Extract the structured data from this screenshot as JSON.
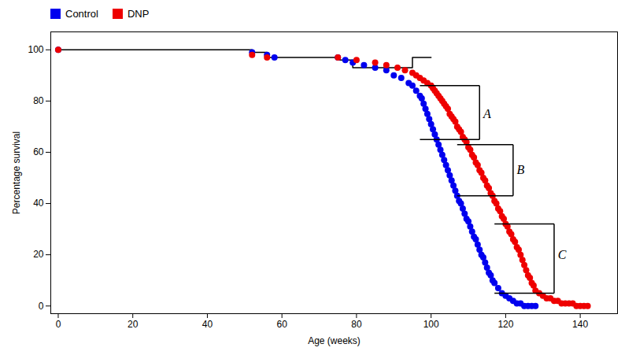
{
  "chart_data": {
    "type": "scatter",
    "xlabel": "Age (weeks)",
    "ylabel": "Percentage survival",
    "xlim": [
      -2,
      150
    ],
    "ylim": [
      -3,
      107
    ],
    "xticks": [
      0,
      20,
      40,
      60,
      80,
      100,
      120,
      140
    ],
    "yticks": [
      0,
      20,
      40,
      60,
      80,
      100
    ],
    "grid": false,
    "legend": "top",
    "series": [
      {
        "name": "Control",
        "color": "#0000EE",
        "x": [
          0,
          52,
          56,
          58,
          75,
          77,
          79,
          82,
          85,
          88,
          90,
          92,
          94,
          95,
          96,
          97,
          97.5,
          98,
          98.5,
          99,
          99.5,
          100,
          100.5,
          101,
          101.5,
          102,
          102.5,
          103,
          103.5,
          104,
          104.5,
          105,
          105.5,
          106,
          106.5,
          107,
          107.5,
          108,
          108.5,
          109,
          109.5,
          110,
          110.5,
          111,
          111.5,
          112,
          112.5,
          113,
          113.5,
          114,
          114.5,
          115,
          115.5,
          116,
          116.5,
          117,
          118,
          119,
          120,
          121,
          122,
          123,
          124,
          125,
          126,
          127,
          128
        ],
        "values": [
          100,
          99,
          98,
          97,
          97,
          96,
          95,
          94,
          93,
          92,
          90,
          89,
          87,
          86,
          84,
          82,
          81,
          79,
          77,
          75,
          73,
          71,
          69,
          67,
          65,
          63,
          61,
          59,
          57,
          55,
          53,
          51,
          49,
          47,
          45,
          43,
          41,
          40,
          38,
          36,
          34,
          33,
          31,
          29,
          27,
          26,
          24,
          22,
          20,
          19,
          17,
          15,
          13,
          12,
          10,
          9,
          7,
          5,
          4,
          3,
          2,
          1,
          1,
          0,
          0,
          0,
          0
        ]
      },
      {
        "name": "DNP",
        "color": "#EE0000",
        "x": [
          0,
          52,
          56,
          75,
          80,
          85,
          88,
          91,
          93,
          95,
          96,
          97,
          98,
          99,
          100,
          100.5,
          101,
          101.5,
          102,
          102.5,
          103,
          103.5,
          104,
          104.5,
          105,
          105.5,
          106,
          106.5,
          107,
          107.5,
          108,
          108.5,
          109,
          109.5,
          110,
          110.5,
          111,
          111.5,
          112,
          112.5,
          113,
          113.5,
          114,
          114.5,
          115,
          115.5,
          116,
          116.5,
          117,
          117.5,
          118,
          118.5,
          119,
          119.5,
          120,
          120.5,
          121,
          121.5,
          122,
          122.5,
          123,
          123.5,
          124,
          124.5,
          125,
          125.5,
          126,
          126.5,
          127,
          127.5,
          128,
          129,
          130,
          131,
          132,
          133,
          134,
          135,
          136,
          137,
          138,
          139,
          140,
          141,
          142
        ],
        "values": [
          100,
          98,
          97,
          97,
          96,
          95,
          94,
          93,
          92,
          91,
          90,
          89,
          88,
          87,
          86,
          85,
          84,
          83,
          82,
          81,
          80,
          79,
          78,
          77,
          75,
          74,
          73,
          72,
          70,
          69,
          68,
          66,
          65,
          64,
          62,
          61,
          59,
          58,
          56,
          55,
          53,
          52,
          50,
          49,
          47,
          46,
          44,
          43,
          41,
          40,
          38,
          37,
          35,
          34,
          32,
          31,
          29,
          28,
          26,
          25,
          23,
          22,
          20,
          18,
          16,
          14,
          12,
          11,
          9,
          8,
          6,
          5,
          4,
          3,
          3,
          2,
          2,
          1,
          1,
          1,
          1,
          0,
          0,
          0,
          0
        ]
      }
    ],
    "lines": [
      {
        "color": "#000000",
        "x": [
          0,
          52,
          52,
          56,
          56,
          75,
          75,
          79,
          79,
          95,
          95,
          100
        ],
        "values": [
          100,
          100,
          99,
          99,
          97,
          97,
          96,
          96,
          93,
          93,
          97,
          97
        ]
      }
    ],
    "annotations": [
      {
        "text": "A",
        "x": 114,
        "y": 75,
        "bracket": {
          "x1": 97,
          "x2": 113,
          "y1": 86,
          "y2": 65
        }
      },
      {
        "text": "B",
        "x": 123,
        "y": 53,
        "bracket": {
          "x1": 107,
          "x2": 122,
          "y1": 63,
          "y2": 43
        }
      },
      {
        "text": "C",
        "x": 134,
        "y": 20,
        "bracket": {
          "x1": 117,
          "x2": 133,
          "y1": 32,
          "y2": 5
        }
      }
    ]
  }
}
